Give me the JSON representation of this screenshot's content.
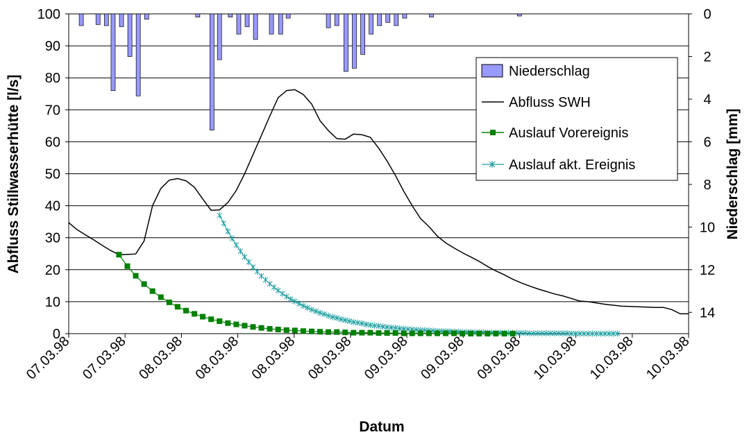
{
  "chart_data": {
    "type": "line",
    "xlabel": "Datum",
    "ylabel": "Abfluss Stillwasserhütte [l/s]",
    "y2label": "Niederschlag [mm]",
    "ylim": [
      0,
      100
    ],
    "y2lim": [
      0,
      15
    ],
    "y2_inverted": true,
    "yticks": [
      "0",
      "10",
      "20",
      "30",
      "40",
      "50",
      "60",
      "70",
      "80",
      "90",
      "100"
    ],
    "y2ticks": [
      "0",
      "2",
      "4",
      "6",
      "8",
      "10",
      "12",
      "14"
    ],
    "xlim": [
      0,
      74
    ],
    "xticks": [
      "07.03.98",
      "07.03.98",
      "08.03.98",
      "08.03.98",
      "08.03.98",
      "08.03.98",
      "09.03.98",
      "09.03.98",
      "09.03.98",
      "10.03.98",
      "10.03.98",
      "10.03.98"
    ],
    "grid": "horizontal",
    "legend_position": "right-center",
    "legend": [
      "Niederschlag",
      "Abfluss SWH",
      "Auslauf Vorereignis",
      "Auslauf akt. Ereignis"
    ],
    "colors": {
      "niederschlag": "#9999ff",
      "abfluss": "#000000",
      "vorereignis": "#008000",
      "aktuell": "#1a9ea0",
      "grid": "#000000"
    },
    "series": [
      {
        "name": "Niederschlag",
        "type": "bar",
        "axis": "right",
        "x": [
          1.5,
          3.5,
          4.5,
          5.3,
          6.3,
          7.3,
          8.3,
          9.3,
          15.4,
          17.1,
          18.0,
          19.3,
          20.3,
          21.3,
          22.3,
          24.2,
          25.3,
          26.2,
          31.0,
          32.0,
          33.1,
          34.1,
          35.1,
          36.1,
          37.1,
          38.1,
          39.1,
          40.1,
          43.3,
          53.8
        ],
        "values": [
          0.55,
          0.5,
          0.55,
          3.6,
          0.6,
          2.0,
          3.85,
          0.25,
          0.15,
          5.45,
          2.15,
          0.15,
          0.95,
          0.6,
          1.2,
          0.95,
          0.95,
          0.2,
          0.65,
          0.55,
          2.7,
          2.55,
          1.9,
          0.95,
          0.55,
          0.4,
          0.55,
          0.2,
          0.15,
          0.1
        ]
      },
      {
        "name": "Abfluss SWH",
        "type": "line",
        "x": [
          0,
          1,
          2,
          3,
          4,
          5,
          6,
          7,
          8,
          9,
          10,
          11,
          12,
          13,
          14,
          15,
          16,
          17,
          18,
          19,
          20,
          21,
          22,
          23,
          24,
          25,
          26,
          27,
          28,
          29,
          30,
          31,
          32,
          33,
          34,
          35,
          36,
          37,
          38,
          39,
          40,
          41,
          42,
          43,
          44,
          45,
          46,
          47,
          48,
          49,
          50,
          51,
          52,
          53,
          54,
          55,
          56,
          57,
          58,
          59,
          60,
          61,
          62,
          63,
          64,
          65,
          66,
          67,
          68,
          69,
          70,
          71,
          72,
          73,
          74
        ],
        "values": [
          34.7,
          32.5,
          30.9,
          29.3,
          27.6,
          26.0,
          24.7,
          24.8,
          24.9,
          29.0,
          40.0,
          45.4,
          48.0,
          48.5,
          47.8,
          45.8,
          42.1,
          38.6,
          38.7,
          41.0,
          44.8,
          50.0,
          56.0,
          62.0,
          68.0,
          73.8,
          76.0,
          76.3,
          74.8,
          71.8,
          66.6,
          63.5,
          61.0,
          60.8,
          62.4,
          62.2,
          61.4,
          58.0,
          54.0,
          49.5,
          44.5,
          40.0,
          36.0,
          33.5,
          30.5,
          28.4,
          26.8,
          25.3,
          24.0,
          22.6,
          21.0,
          19.6,
          18.4,
          17.0,
          15.9,
          14.9,
          14.0,
          13.2,
          12.4,
          11.8,
          11.0,
          10.2,
          10.0,
          9.6,
          9.2,
          8.9,
          8.6,
          8.5,
          8.4,
          8.3,
          8.2,
          8.2,
          7.5,
          6.2,
          6.2
        ]
      },
      {
        "name": "Auslauf Vorereignis",
        "type": "line",
        "marker": "square",
        "x": [
          6,
          7,
          8,
          9,
          10,
          11,
          12,
          13,
          14,
          15,
          16,
          17,
          18,
          19,
          20,
          21,
          22,
          23,
          24,
          25,
          26,
          27,
          28,
          29,
          30,
          31,
          32,
          33,
          34,
          35,
          36,
          37,
          38,
          39,
          40,
          41,
          42,
          43,
          44,
          45,
          46,
          47,
          48,
          49,
          50,
          51,
          52,
          53
        ],
        "values": [
          24.7,
          21.1,
          18.1,
          15.5,
          13.3,
          11.4,
          9.8,
          8.4,
          7.2,
          6.2,
          5.3,
          4.5,
          3.9,
          3.3,
          2.9,
          2.5,
          2.1,
          1.8,
          1.5,
          1.3,
          1.1,
          1.0,
          0.8,
          0.7,
          0.6,
          0.5,
          0.5,
          0.4,
          0.3,
          0.3,
          0.3,
          0.2,
          0.2,
          0.2,
          0.1,
          0.1,
          0.1,
          0.1,
          0.1,
          0.1,
          0.1,
          0.0,
          0.0,
          0.0,
          0.0,
          0.0,
          0.0,
          0.0
        ]
      },
      {
        "name": "Auslauf akt. Ereignis",
        "type": "line",
        "marker": "star",
        "x": [
          18.0,
          18.5,
          19.0,
          19.5,
          20.0,
          20.5,
          21.0,
          21.5,
          22.0,
          22.5,
          23.0,
          23.5,
          24.0,
          24.5,
          25.0,
          25.5,
          26.0,
          26.5,
          27.0,
          27.5,
          28.0,
          28.5,
          29.0,
          29.5,
          30.0,
          30.5,
          31.0,
          31.5,
          32.0,
          32.5,
          33.0,
          33.5,
          34.0,
          34.5,
          35.0,
          35.5,
          36.0,
          36.5,
          37.0,
          37.5,
          38.0,
          38.5,
          39.0,
          39.5,
          40.0,
          40.5,
          41.0,
          41.5,
          42.0,
          42.5,
          43.0,
          43.5,
          44.0,
          44.5,
          45.0,
          45.5,
          46.0,
          46.5,
          47.0,
          47.5,
          48.0,
          48.5,
          49.0,
          49.5,
          50.0,
          50.5,
          51.0,
          51.5,
          52.0,
          52.5,
          53.0,
          53.5,
          54.0,
          54.5,
          55.0,
          55.5,
          56.0,
          56.5,
          57.0,
          57.5,
          58.0,
          58.5,
          59.0,
          59.5,
          60.0,
          60.5,
          61.0,
          61.5,
          62.0,
          62.5,
          63.0,
          63.5,
          64.0,
          64.5,
          65.0,
          65.5
        ],
        "values": [
          37.0,
          34.5,
          32.0,
          29.8,
          27.7,
          25.8,
          24.0,
          22.4,
          20.8,
          19.4,
          18.0,
          16.8,
          15.6,
          14.5,
          13.5,
          12.5,
          11.6,
          10.8,
          10.1,
          9.4,
          8.7,
          8.1,
          7.5,
          7.0,
          6.5,
          6.1,
          5.6,
          5.2,
          4.9,
          4.5,
          4.2,
          3.9,
          3.6,
          3.4,
          3.2,
          2.9,
          2.7,
          2.5,
          2.4,
          2.2,
          2.0,
          1.9,
          1.8,
          1.6,
          1.5,
          1.4,
          1.3,
          1.2,
          1.1,
          1.1,
          1.0,
          0.9,
          0.8,
          0.8,
          0.7,
          0.7,
          0.6,
          0.6,
          0.5,
          0.5,
          0.5,
          0.4,
          0.4,
          0.4,
          0.3,
          0.3,
          0.3,
          0.3,
          0.2,
          0.2,
          0.2,
          0.2,
          0.2,
          0.2,
          0.1,
          0.1,
          0.1,
          0.1,
          0.1,
          0.1,
          0.1,
          0.1,
          0.1,
          0.1,
          0.0,
          0.0,
          0.0,
          0.0,
          0.0,
          0.0,
          0.0,
          0.0,
          0.0,
          0.0,
          0.0,
          0.0
        ]
      }
    ]
  }
}
